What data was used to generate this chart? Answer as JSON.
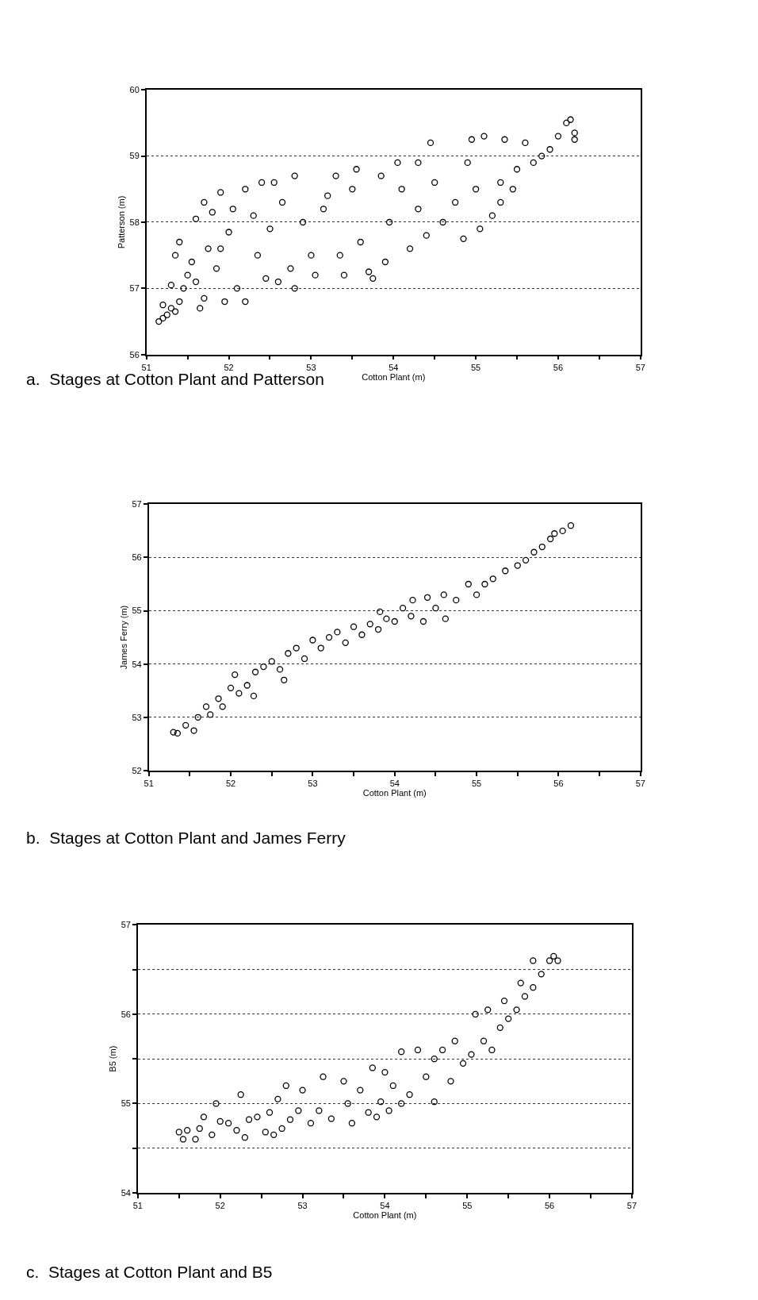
{
  "chart_data": [
    {
      "type": "scatter",
      "title": "a.  Stages at Cotton Plant and Patterson",
      "xlabel": "Cotton Plant (m)",
      "ylabel": "Patterson (m)",
      "marker": "circle",
      "grid": "y",
      "xlim": [
        51,
        57
      ],
      "xticks": [
        51,
        {
          "value": 51.5,
          "label": null
        },
        52,
        {
          "value": 52.5,
          "label": null
        },
        53,
        {
          "value": 53.5,
          "label": null
        },
        54,
        {
          "value": 54.5,
          "label": null
        },
        55,
        {
          "value": 55.5,
          "label": null
        },
        56,
        {
          "value": 56.5,
          "label": null
        },
        57
      ],
      "ylim": [
        56,
        60
      ],
      "yticks": [
        56,
        57,
        58,
        59,
        60
      ],
      "series": [
        {
          "color": "#000000",
          "x": [
            51.15,
            51.2,
            51.25,
            51.3,
            51.35,
            51.2,
            51.4,
            51.3,
            51.45,
            51.5,
            51.35,
            51.4,
            51.55,
            51.6,
            51.65,
            51.7,
            51.6,
            51.7,
            51.8,
            51.9,
            51.75,
            51.85,
            51.95,
            52.0,
            52.05,
            52.1,
            52.2,
            52.2,
            52.3,
            52.35,
            52.45,
            52.4,
            52.55,
            52.6,
            52.65,
            52.75,
            52.8,
            52.8,
            52.9,
            53.0,
            53.05,
            53.15,
            53.3,
            53.35,
            53.4,
            53.5,
            53.55,
            53.6,
            53.7,
            53.75,
            53.85,
            53.9,
            53.95,
            54.05,
            54.1,
            54.2,
            54.3,
            54.4,
            54.45,
            54.5,
            54.6,
            54.75,
            54.85,
            54.9,
            54.95,
            55.0,
            55.05,
            55.1,
            55.2,
            55.3,
            55.35,
            55.45,
            55.5,
            55.6,
            55.7,
            55.8,
            55.9,
            56.0,
            56.1,
            56.15,
            56.2,
            56.2,
            55.3,
            54.3,
            53.2,
            52.5,
            51.9
          ],
          "values": [
            56.5,
            56.55,
            56.6,
            56.7,
            56.65,
            56.75,
            56.8,
            57.05,
            57.0,
            57.2,
            57.5,
            57.7,
            57.4,
            57.1,
            56.7,
            56.85,
            58.05,
            58.3,
            58.15,
            58.45,
            57.6,
            57.3,
            56.8,
            57.85,
            58.2,
            57.0,
            56.8,
            58.5,
            58.1,
            57.5,
            57.15,
            58.6,
            58.6,
            57.1,
            58.3,
            57.3,
            57.0,
            58.7,
            58.0,
            57.5,
            57.2,
            58.2,
            58.7,
            57.5,
            57.2,
            58.5,
            58.8,
            57.7,
            57.25,
            57.15,
            58.7,
            57.4,
            58.0,
            58.9,
            58.5,
            57.6,
            58.9,
            57.8,
            59.2,
            58.6,
            58.0,
            58.3,
            57.75,
            58.9,
            59.25,
            58.5,
            57.9,
            59.3,
            58.1,
            58.6,
            59.25,
            58.5,
            58.8,
            59.2,
            58.9,
            59.0,
            59.1,
            59.3,
            59.5,
            59.55,
            59.35,
            59.25,
            58.3,
            58.2,
            58.4,
            57.9,
            57.6
          ]
        }
      ]
    },
    {
      "type": "scatter",
      "title": "b.  Stages at Cotton Plant and James Ferry",
      "xlabel": "Cotton Plant (m)",
      "ylabel": "James Ferry (m)",
      "marker": "circle",
      "grid": "y",
      "xlim": [
        51,
        57
      ],
      "xticks": [
        51,
        {
          "value": 51.5,
          "label": null
        },
        52,
        {
          "value": 52.5,
          "label": null
        },
        53,
        {
          "value": 53.5,
          "label": null
        },
        54,
        {
          "value": 54.5,
          "label": null
        },
        55,
        {
          "value": 55.5,
          "label": null
        },
        56,
        {
          "value": 56.5,
          "label": null
        },
        57
      ],
      "ylim": [
        52,
        57
      ],
      "yticks": [
        52,
        53,
        54,
        55,
        56,
        57
      ],
      "series": [
        {
          "color": "#000000",
          "x": [
            51.3,
            51.35,
            51.45,
            51.55,
            51.6,
            51.7,
            51.75,
            51.85,
            51.9,
            52.0,
            52.05,
            52.1,
            52.2,
            52.28,
            52.3,
            52.4,
            52.5,
            52.6,
            52.65,
            52.7,
            52.8,
            52.9,
            53.0,
            53.1,
            53.2,
            53.3,
            53.4,
            53.5,
            53.6,
            53.7,
            53.8,
            53.82,
            53.9,
            54.0,
            54.1,
            54.2,
            54.22,
            54.35,
            54.4,
            54.5,
            54.6,
            54.62,
            54.75,
            54.9,
            55.0,
            55.1,
            55.2,
            55.35,
            55.5,
            55.6,
            55.7,
            55.8,
            55.9,
            55.95,
            56.05,
            56.15
          ],
          "values": [
            52.72,
            52.7,
            52.85,
            52.75,
            53.0,
            53.2,
            53.05,
            53.35,
            53.2,
            53.55,
            53.8,
            53.45,
            53.6,
            53.4,
            53.85,
            53.95,
            54.05,
            53.9,
            53.7,
            54.2,
            54.3,
            54.1,
            54.45,
            54.3,
            54.5,
            54.6,
            54.4,
            54.7,
            54.55,
            54.75,
            54.65,
            54.98,
            54.85,
            54.8,
            55.05,
            54.9,
            55.2,
            54.8,
            55.25,
            55.05,
            55.3,
            54.85,
            55.2,
            55.5,
            55.3,
            55.5,
            55.6,
            55.75,
            55.85,
            55.95,
            56.1,
            56.2,
            56.35,
            56.45,
            56.5,
            56.6
          ]
        }
      ]
    },
    {
      "type": "scatter",
      "title": "c.  Stages at Cotton Plant and B5",
      "xlabel": "Cotton Plant (m)",
      "ylabel": "B5 (m)",
      "marker": "circle",
      "grid": "y",
      "xlim": [
        51,
        57
      ],
      "xticks": [
        51,
        {
          "value": 51.5,
          "label": null
        },
        52,
        {
          "value": 52.5,
          "label": null
        },
        53,
        {
          "value": 53.5,
          "label": null
        },
        54,
        {
          "value": 54.5,
          "label": null
        },
        55,
        {
          "value": 55.5,
          "label": null
        },
        56,
        {
          "value": 56.5,
          "label": null
        },
        57
      ],
      "ylim": [
        54,
        57
      ],
      "yticks": [
        54,
        {
          "value": 54.5,
          "label": null
        },
        55,
        {
          "value": 55.5,
          "label": null
        },
        56,
        {
          "value": 56.5,
          "label": null
        },
        57
      ],
      "series": [
        {
          "color": "#000000",
          "x": [
            51.5,
            51.55,
            51.6,
            51.7,
            51.75,
            51.8,
            51.9,
            51.95,
            52.0,
            52.1,
            52.2,
            52.25,
            52.3,
            52.35,
            52.45,
            52.55,
            52.6,
            52.65,
            52.7,
            52.75,
            52.8,
            52.85,
            52.95,
            53.0,
            53.1,
            53.2,
            53.25,
            53.35,
            53.5,
            53.55,
            53.6,
            53.7,
            53.8,
            53.85,
            53.9,
            53.95,
            54.0,
            54.05,
            54.1,
            54.2,
            54.2,
            54.3,
            54.4,
            54.5,
            54.6,
            54.6,
            54.7,
            54.8,
            54.85,
            54.95,
            55.05,
            55.1,
            55.2,
            55.25,
            55.3,
            55.4,
            55.45,
            55.5,
            55.6,
            55.65,
            55.7,
            55.8,
            55.8,
            55.9,
            56.0,
            56.05,
            56.1
          ],
          "values": [
            54.68,
            54.6,
            54.7,
            54.6,
            54.72,
            54.85,
            54.65,
            55.0,
            54.8,
            54.78,
            54.7,
            55.1,
            54.62,
            54.82,
            54.85,
            54.68,
            54.9,
            54.65,
            55.05,
            54.72,
            55.2,
            54.82,
            54.92,
            55.15,
            54.78,
            54.92,
            55.3,
            54.83,
            55.25,
            55.0,
            54.78,
            55.15,
            54.9,
            55.4,
            54.85,
            55.02,
            55.35,
            54.92,
            55.2,
            55.0,
            55.58,
            55.1,
            55.6,
            55.3,
            55.02,
            55.5,
            55.6,
            55.25,
            55.7,
            55.45,
            55.55,
            56.0,
            55.7,
            56.05,
            55.6,
            55.85,
            56.15,
            55.95,
            56.05,
            56.35,
            56.2,
            56.3,
            56.6,
            56.45,
            56.6,
            56.65,
            56.6
          ]
        }
      ]
    }
  ]
}
